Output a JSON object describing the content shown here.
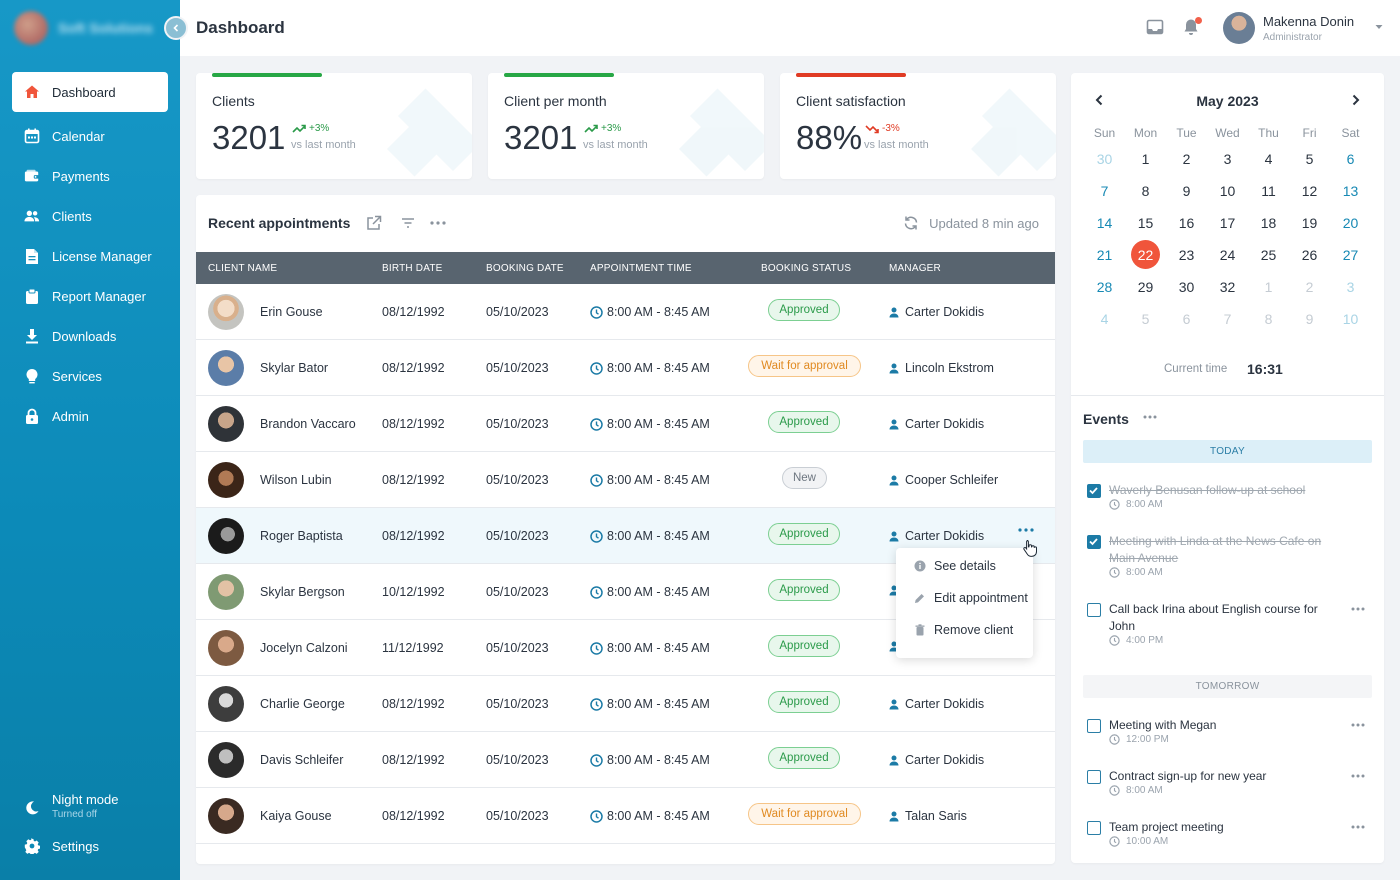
{
  "sidebar": {
    "brand_name": "Soft Solutions",
    "items": [
      {
        "label": "Dashboard",
        "icon": "home-icon"
      },
      {
        "label": "Calendar",
        "icon": "calendar-icon"
      },
      {
        "label": "Payments",
        "icon": "wallet-icon"
      },
      {
        "label": "Clients",
        "icon": "users-icon"
      },
      {
        "label": "License Manager",
        "icon": "document-icon"
      },
      {
        "label": "Report Manager",
        "icon": "clipboard-icon"
      },
      {
        "label": "Downloads",
        "icon": "download-icon"
      },
      {
        "label": "Services",
        "icon": "lightbulb-icon"
      },
      {
        "label": "Admin",
        "icon": "lock-icon"
      }
    ],
    "active": "Dashboard",
    "night_mode": {
      "label": "Night mode",
      "status": "Turned off"
    },
    "settings_label": "Settings"
  },
  "header": {
    "title": "Dashboard",
    "user": {
      "name": "Makenna Donin",
      "role": "Administrator"
    }
  },
  "stats": [
    {
      "title": "Clients",
      "value": "3201",
      "delta": "+3%",
      "trend": "up",
      "caption": "vs last month",
      "bar_color": "#27a745"
    },
    {
      "title": "Client per month",
      "value": "3201",
      "delta": "+3%",
      "trend": "up",
      "caption": "vs last month",
      "bar_color": "#27a745"
    },
    {
      "title": "Client satisfaction",
      "value": "88%",
      "delta": "-3%",
      "trend": "down",
      "caption": "vs last month",
      "bar_color": "#e03b24"
    }
  ],
  "appointments": {
    "title": "Recent appointments",
    "updated": "Updated 8 min ago",
    "columns": [
      "CLIENT NAME",
      "BIRTH DATE",
      "BOOKING DATE",
      "APPOINTMENT TIME",
      "BOOKING STATUS",
      "MANAGER"
    ],
    "rows": [
      {
        "name": "Erin Gouse",
        "birth": "08/12/1992",
        "booking": "05/10/2023",
        "time": "8:00 AM - 8:45 AM",
        "status": "Approved",
        "manager": "Carter Dokidis"
      },
      {
        "name": "Skylar Bator",
        "birth": "08/12/1992",
        "booking": "05/10/2023",
        "time": "8:00 AM - 8:45 AM",
        "status": "Wait for approval",
        "manager": "Lincoln Ekstrom"
      },
      {
        "name": "Brandon Vaccaro",
        "birth": "08/12/1992",
        "booking": "05/10/2023",
        "time": "8:00 AM - 8:45 AM",
        "status": "Approved",
        "manager": "Carter Dokidis"
      },
      {
        "name": "Wilson Lubin",
        "birth": "08/12/1992",
        "booking": "05/10/2023",
        "time": "8:00 AM - 8:45 AM",
        "status": "New",
        "manager": "Cooper Schleifer"
      },
      {
        "name": "Roger Baptista",
        "birth": "08/12/1992",
        "booking": "05/10/2023",
        "time": "8:00 AM - 8:45 AM",
        "status": "Approved",
        "manager": "Carter Dokidis"
      },
      {
        "name": "Skylar Bergson",
        "birth": "10/12/1992",
        "booking": "05/10/2023",
        "time": "8:00 AM - 8:45 AM",
        "status": "Approved",
        "manager": ""
      },
      {
        "name": "Jocelyn Calzoni",
        "birth": "11/12/1992",
        "booking": "05/10/2023",
        "time": "8:00 AM - 8:45 AM",
        "status": "Approved",
        "manager": ""
      },
      {
        "name": "Charlie George",
        "birth": "08/12/1992",
        "booking": "05/10/2023",
        "time": "8:00 AM - 8:45 AM",
        "status": "Approved",
        "manager": "Carter Dokidis"
      },
      {
        "name": "Davis Schleifer",
        "birth": "08/12/1992",
        "booking": "05/10/2023",
        "time": "8:00 AM - 8:45 AM",
        "status": "Approved",
        "manager": "Carter Dokidis"
      },
      {
        "name": "Kaiya Gouse",
        "birth": "08/12/1992",
        "booking": "05/10/2023",
        "time": "8:00 AM - 8:45 AM",
        "status": "Wait for approval",
        "manager": "Talan Saris"
      }
    ],
    "row_menu": [
      "See details",
      "Edit appointment",
      "Remove client"
    ]
  },
  "calendar": {
    "month": "May 2023",
    "weekdays": [
      "Sun",
      "Mon",
      "Tue",
      "Wed",
      "Thu",
      "Fri",
      "Sat"
    ],
    "weeks": [
      [
        "30",
        "1",
        "2",
        "3",
        "4",
        "5",
        "6"
      ],
      [
        "7",
        "8",
        "9",
        "10",
        "11",
        "12",
        "13"
      ],
      [
        "14",
        "15",
        "16",
        "17",
        "18",
        "19",
        "20"
      ],
      [
        "21",
        "22",
        "23",
        "24",
        "25",
        "26",
        "27"
      ],
      [
        "28",
        "29",
        "30",
        "32",
        "1",
        "2",
        "3"
      ],
      [
        "4",
        "5",
        "6",
        "7",
        "8",
        "9",
        "10"
      ]
    ],
    "selected": "22",
    "current_time_label": "Current time",
    "current_time": "16:31"
  },
  "events": {
    "title": "Events",
    "today_label": "TODAY",
    "tomorrow_label": "TOMORROW",
    "today": [
      {
        "text": "Waverly Benusan follow-up at school",
        "time": "8:00 AM",
        "done": true
      },
      {
        "text": "Meeting with Linda at the News Cafe on Main Avenue",
        "time": "8:00 AM",
        "done": true
      },
      {
        "text": "Call back Irina about English course for John",
        "time": "4:00 PM",
        "done": false
      }
    ],
    "tomorrow": [
      {
        "text": "Meeting with Megan",
        "time": "12:00 PM",
        "done": false
      },
      {
        "text": "Contract sign-up for new year",
        "time": "8:00 AM",
        "done": false
      },
      {
        "text": "Team project meeting",
        "time": "10:00 AM",
        "done": false
      }
    ]
  }
}
